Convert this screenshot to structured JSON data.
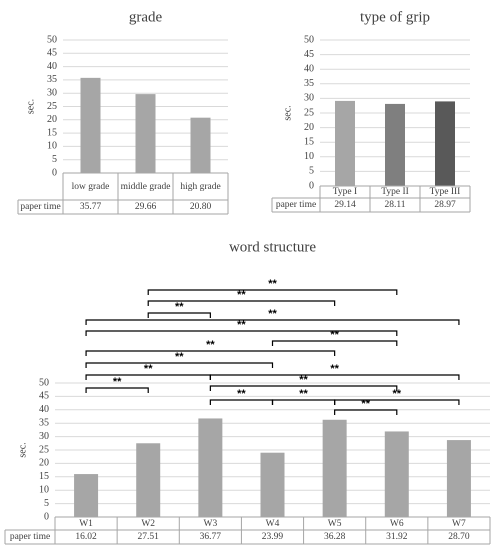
{
  "chart_data": [
    {
      "type": "bar",
      "title": "grade",
      "y_label": "sec.",
      "categories": [
        "low grade",
        "middle grade",
        "high grade"
      ],
      "series": [
        {
          "name": "paper time",
          "color": "#a6a6a6",
          "values": [
            35.77,
            29.66,
            20.8
          ],
          "value_labels": [
            "35.77",
            "29.66",
            "20.80"
          ]
        }
      ],
      "ylim": [
        0,
        50
      ],
      "yticks": [
        0,
        5,
        10,
        15,
        20,
        25,
        30,
        35,
        40,
        45,
        50
      ],
      "grid": true
    },
    {
      "type": "bar",
      "title": "type of grip",
      "y_label": "sec.",
      "categories": [
        "Type I",
        "Type II",
        "Type III"
      ],
      "series": [
        {
          "name": "paper time",
          "colors": [
            "#a6a6a6",
            "#7f7f7f",
            "#595959"
          ],
          "values": [
            29.14,
            28.11,
            28.97
          ],
          "value_labels": [
            "29.14",
            "28.11",
            "28.97"
          ]
        }
      ],
      "ylim": [
        0,
        50
      ],
      "yticks": [
        0,
        5,
        10,
        15,
        20,
        25,
        30,
        35,
        40,
        45,
        50
      ],
      "grid": true
    },
    {
      "type": "bar",
      "title": "word structure",
      "y_label": "sec.",
      "categories": [
        "W1",
        "W2",
        "W3",
        "W4",
        "W5",
        "W6",
        "W7"
      ],
      "series": [
        {
          "name": "paper time",
          "color": "#a6a6a6",
          "values": [
            16.02,
            27.51,
            36.77,
            23.99,
            36.28,
            31.92,
            28.7
          ],
          "value_labels": [
            "16.02",
            "27.51",
            "36.77",
            "23.99",
            "36.28",
            "31.92",
            "28.70"
          ]
        }
      ],
      "ylim": [
        0,
        50
      ],
      "yticks": [
        0,
        5,
        10,
        15,
        20,
        25,
        30,
        35,
        40,
        45,
        50
      ],
      "grid": true,
      "significance": [
        {
          "from": "W2",
          "to": "W6",
          "label": "**"
        },
        {
          "from": "W2",
          "to": "W5",
          "label": "**"
        },
        {
          "from": "W2",
          "to": "W3",
          "label": "**"
        },
        {
          "from": "W1",
          "to": "W7",
          "label": "**"
        },
        {
          "from": "W1",
          "to": "W6",
          "label": "**"
        },
        {
          "from": "W4",
          "to": "W6",
          "label": "**"
        },
        {
          "from": "W1",
          "to": "W5",
          "label": "**"
        },
        {
          "from": "W1",
          "to": "W4",
          "label": "**"
        },
        {
          "from": "W1",
          "to": "W3",
          "label": "**"
        },
        {
          "from": "W3",
          "to": "W7",
          "label": "**"
        },
        {
          "from": "W1",
          "to": "W2",
          "label": "**"
        },
        {
          "from": "W3",
          "to": "W6",
          "label": "**"
        },
        {
          "from": "W3",
          "to": "W4",
          "label": "**"
        },
        {
          "from": "W4",
          "to": "W5",
          "label": "**"
        },
        {
          "from": "W5",
          "to": "W7",
          "label": "**"
        },
        {
          "from": "W5",
          "to": "W6",
          "label": "**"
        }
      ]
    }
  ]
}
